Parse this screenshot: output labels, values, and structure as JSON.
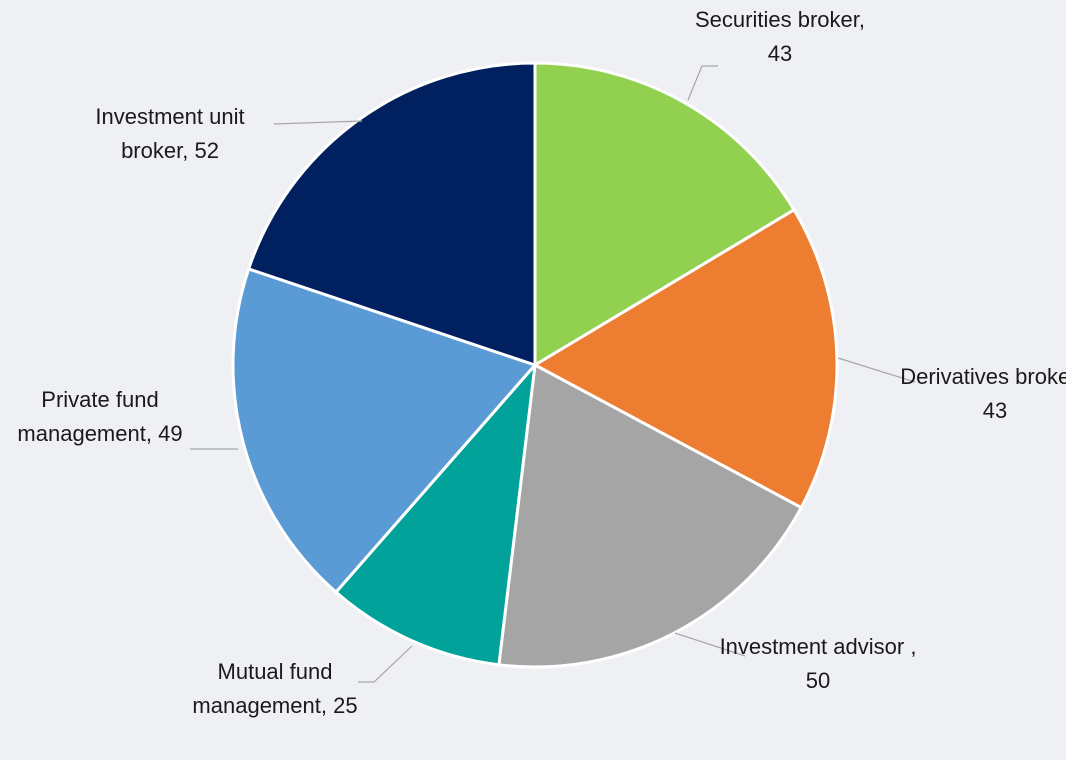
{
  "chart_data": {
    "type": "pie",
    "categories": [
      "Securities broker",
      "Derivatives broker ",
      "Investment advisor ",
      "Mutual fund management",
      "Private fund management",
      "Investment unit broker"
    ],
    "values": [
      43,
      43,
      50,
      25,
      49,
      52
    ],
    "colors": [
      "#92d050",
      "#ed7d31",
      "#a5a5a5",
      "#00a29a",
      "#5b9bd5",
      "#002060"
    ],
    "label_separator": ", "
  }
}
